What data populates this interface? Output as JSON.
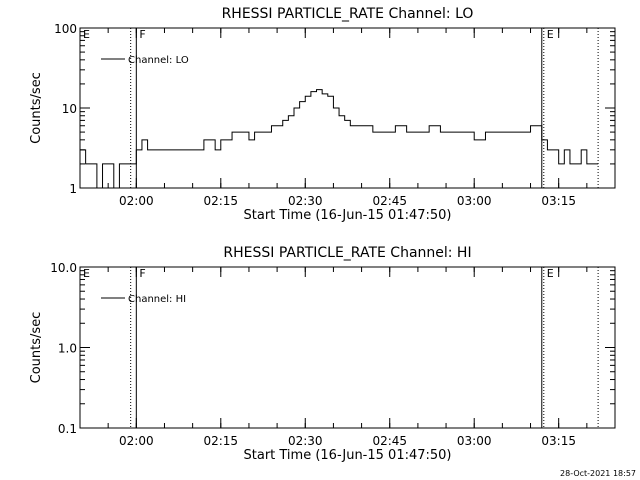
{
  "footer": {
    "date": "28-Oct-2021 18:57"
  },
  "chart_data": [
    {
      "type": "line",
      "title": "RHESSI PARTICLE_RATE Channel: LO",
      "xlabel": "Start Time (16-Jun-15 01:47:50)",
      "ylabel": "Counts/sec",
      "yscale": "log",
      "ylim": [
        1,
        100
      ],
      "ytick_values": [
        1,
        10,
        100
      ],
      "ytick_labels": [
        "1",
        "10",
        "100"
      ],
      "xlim": [
        "01:50",
        "03:25"
      ],
      "xtick_values": [
        "02:00",
        "02:15",
        "02:30",
        "02:45",
        "03:00",
        "03:15"
      ],
      "xtick_labels": [
        "02:00",
        "02:15",
        "02:30",
        "02:45",
        "03:00",
        "03:15"
      ],
      "legend": {
        "position": "top-left",
        "entries": [
          "Channel: LO"
        ]
      },
      "markers": [
        {
          "label": "E",
          "time": "01:50",
          "style": "none"
        },
        {
          "label": "",
          "time": "01:59",
          "style": "dotted"
        },
        {
          "label": "F",
          "time": "02:00",
          "style": "solid"
        },
        {
          "label": "",
          "time": "03:12",
          "style": "solid"
        },
        {
          "label": "E",
          "time": "03:12",
          "style": "dotted"
        },
        {
          "label": "",
          "time": "03:22",
          "style": "dotted"
        }
      ],
      "series": [
        {
          "name": "Channel: LO",
          "x": [
            "01:50",
            "01:51",
            "01:52",
            "01:53",
            "01:54",
            "01:55",
            "01:56",
            "01:57",
            "01:58",
            "01:59",
            "02:00",
            "02:01",
            "02:02",
            "02:04",
            "02:06",
            "02:08",
            "02:10",
            "02:12",
            "02:14",
            "02:15",
            "02:16",
            "02:17",
            "02:18",
            "02:19",
            "02:20",
            "02:21",
            "02:22",
            "02:23",
            "02:24",
            "02:25",
            "02:26",
            "02:27",
            "02:28",
            "02:29",
            "02:30",
            "02:31",
            "02:32",
            "02:33",
            "02:34",
            "02:35",
            "02:36",
            "02:37",
            "02:38",
            "02:40",
            "02:42",
            "02:44",
            "02:46",
            "02:48",
            "02:50",
            "02:52",
            "02:54",
            "02:56",
            "02:58",
            "03:00",
            "03:02",
            "03:04",
            "03:06",
            "03:08",
            "03:10",
            "03:11",
            "03:12",
            "03:13",
            "03:14",
            "03:15",
            "03:16",
            "03:17",
            "03:18",
            "03:19",
            "03:20",
            "03:21",
            "03:22"
          ],
          "values": [
            3,
            2,
            2,
            1,
            2,
            2,
            1,
            2,
            2,
            2,
            3,
            4,
            3,
            3,
            3,
            3,
            3,
            4,
            3,
            4,
            4,
            5,
            5,
            5,
            4,
            5,
            5,
            5,
            6,
            6,
            7,
            8,
            10,
            12,
            14,
            16,
            17,
            15,
            14,
            10,
            8,
            7,
            6,
            6,
            5,
            5,
            6,
            5,
            5,
            6,
            5,
            5,
            5,
            4,
            5,
            5,
            5,
            5,
            6,
            6,
            4,
            3,
            3,
            2,
            3,
            2,
            2,
            3,
            2,
            2,
            2
          ]
        }
      ]
    },
    {
      "type": "line",
      "title": "RHESSI PARTICLE_RATE Channel: HI",
      "xlabel": "Start Time (16-Jun-15 01:47:50)",
      "ylabel": "Counts/sec",
      "yscale": "log",
      "ylim": [
        0.1,
        10
      ],
      "ytick_values": [
        0.1,
        1,
        10
      ],
      "ytick_labels": [
        "0.1",
        "1.0",
        "10.0"
      ],
      "xlim": [
        "01:50",
        "03:25"
      ],
      "xtick_values": [
        "02:00",
        "02:15",
        "02:30",
        "02:45",
        "03:00",
        "03:15"
      ],
      "xtick_labels": [
        "02:00",
        "02:15",
        "02:30",
        "02:45",
        "03:00",
        "03:15"
      ],
      "legend": {
        "position": "top-left",
        "entries": [
          "Channel: HI"
        ]
      },
      "markers": [
        {
          "label": "E",
          "time": "01:50",
          "style": "none"
        },
        {
          "label": "",
          "time": "01:59",
          "style": "dotted"
        },
        {
          "label": "F",
          "time": "02:00",
          "style": "solid"
        },
        {
          "label": "",
          "time": "03:12",
          "style": "solid"
        },
        {
          "label": "E",
          "time": "03:12",
          "style": "dotted"
        },
        {
          "label": "",
          "time": "03:22",
          "style": "dotted"
        }
      ],
      "series": [
        {
          "name": "Channel: HI",
          "x": [],
          "values": []
        }
      ]
    }
  ]
}
